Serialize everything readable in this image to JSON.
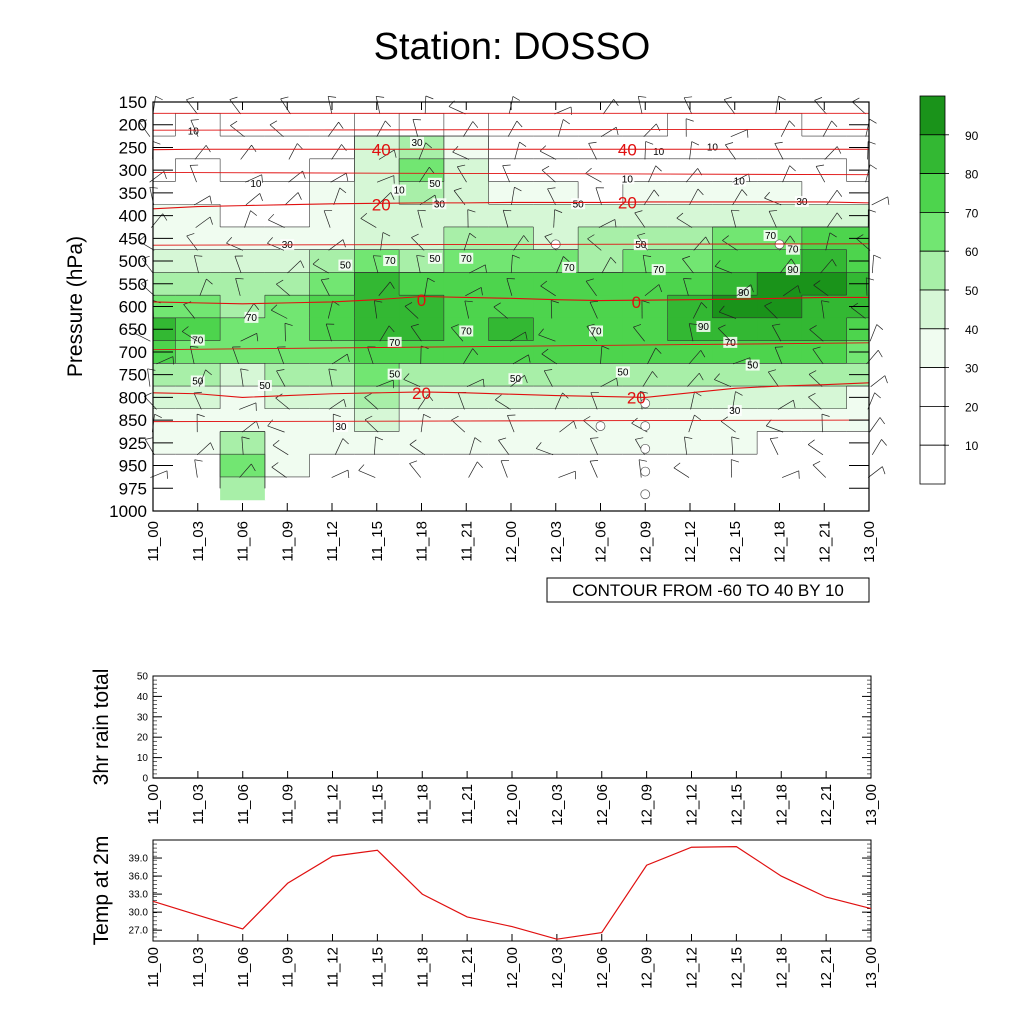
{
  "page": {
    "title": "Station: DOSSO"
  },
  "chart_data": [
    {
      "type": "contour",
      "ylabel": "Pressure (hPa)",
      "xlabel": "",
      "x_ticks": [
        "11_00",
        "11_03",
        "11_06",
        "11_09",
        "11_12",
        "11_15",
        "11_18",
        "11_21",
        "12_00",
        "12_03",
        "12_06",
        "12_09",
        "12_12",
        "12_15",
        "12_18",
        "12_21",
        "13_00"
      ],
      "y_ticks": [
        150,
        200,
        250,
        300,
        350,
        400,
        450,
        500,
        550,
        600,
        650,
        700,
        750,
        800,
        850,
        925,
        950,
        975,
        1000
      ],
      "ylim": [
        150,
        1000
      ],
      "y_scale": "categorical-levels",
      "fill_variable_levels": [
        10,
        20,
        30,
        40,
        50,
        60,
        70,
        80,
        90
      ],
      "fill_colors": [
        "#ffffff",
        "#ffffff",
        "#ffffff",
        "#f0fcf0",
        "#d6f7d6",
        "#a8efa8",
        "#72e672",
        "#4dd44d",
        "#33b833",
        "#1a931a"
      ],
      "fill_line_labels": [
        "10",
        "30",
        "50",
        "70",
        "90",
        "70",
        "50",
        "30"
      ],
      "temperature_contours": {
        "info": "CONTOUR FROM -60 TO 40 BY 10",
        "labels": [
          "40",
          "20",
          "0",
          "20"
        ],
        "color": "#e01010"
      },
      "humidity_grid": {
        "levels": [
          150,
          200,
          250,
          300,
          350,
          400,
          450,
          500,
          550,
          600,
          650,
          700,
          750,
          800,
          850,
          925,
          950,
          975
        ],
        "times": [
          "11_00",
          "11_03",
          "11_06",
          "11_09",
          "11_12",
          "11_15",
          "11_18",
          "11_21",
          "12_00",
          "12_03",
          "12_06",
          "12_09",
          "12_12",
          "12_15",
          "12_18",
          "12_21",
          "13_00"
        ],
        "values": [
          [
            5,
            5,
            5,
            5,
            5,
            5,
            5,
            5,
            5,
            5,
            5,
            5,
            5,
            5,
            5,
            5,
            5
          ],
          [
            8,
            10,
            8,
            6,
            8,
            12,
            20,
            10,
            8,
            6,
            8,
            8,
            10,
            12,
            10,
            8,
            6
          ],
          [
            12,
            15,
            14,
            12,
            18,
            40,
            55,
            30,
            15,
            12,
            14,
            12,
            14,
            16,
            14,
            12,
            10
          ],
          [
            18,
            20,
            18,
            16,
            25,
            45,
            68,
            40,
            25,
            22,
            20,
            20,
            22,
            25,
            22,
            20,
            18
          ],
          [
            25,
            25,
            22,
            20,
            30,
            48,
            55,
            45,
            35,
            30,
            28,
            32,
            30,
            32,
            30,
            28,
            28
          ],
          [
            30,
            30,
            28,
            28,
            32,
            45,
            42,
            45,
            45,
            42,
            42,
            45,
            45,
            45,
            40,
            42,
            42
          ],
          [
            35,
            35,
            32,
            32,
            38,
            48,
            48,
            52,
            50,
            48,
            50,
            52,
            55,
            60,
            65,
            70,
            72
          ],
          [
            45,
            42,
            40,
            40,
            52,
            68,
            58,
            68,
            62,
            60,
            58,
            60,
            65,
            72,
            78,
            85,
            78
          ],
          [
            55,
            55,
            52,
            52,
            62,
            80,
            70,
            72,
            72,
            70,
            75,
            72,
            78,
            85,
            90,
            92,
            85
          ],
          [
            68,
            62,
            58,
            60,
            70,
            88,
            82,
            75,
            78,
            72,
            78,
            75,
            88,
            92,
            90,
            85,
            80
          ],
          [
            80,
            72,
            65,
            68,
            72,
            85,
            82,
            78,
            80,
            75,
            78,
            78,
            85,
            88,
            85,
            80,
            78
          ],
          [
            72,
            65,
            60,
            62,
            65,
            72,
            72,
            70,
            72,
            70,
            70,
            70,
            72,
            75,
            72,
            70,
            68
          ],
          [
            55,
            50,
            48,
            52,
            55,
            60,
            58,
            58,
            58,
            55,
            55,
            55,
            55,
            58,
            55,
            52,
            50
          ],
          [
            42,
            40,
            38,
            42,
            45,
            50,
            48,
            48,
            48,
            45,
            45,
            45,
            45,
            45,
            42,
            40,
            38
          ],
          [
            35,
            35,
            32,
            35,
            38,
            40,
            38,
            38,
            38,
            35,
            35,
            35,
            35,
            35,
            32,
            32,
            30
          ],
          [
            30,
            30,
            55,
            35,
            32,
            30,
            30,
            30,
            30,
            30,
            30,
            30,
            30,
            30,
            28,
            28,
            28
          ],
          [
            25,
            25,
            62,
            30,
            28,
            28,
            25,
            25,
            25,
            25,
            25,
            25,
            25,
            25,
            25,
            25,
            25
          ],
          [
            20,
            20,
            55,
            25,
            20,
            20,
            20,
            20,
            20,
            20,
            20,
            20,
            20,
            20,
            20,
            20,
            20
          ]
        ]
      },
      "temperature_lines": [
        {
          "label": "40",
          "levels_by_time": [
            255,
            254,
            254,
            254,
            254,
            254,
            254,
            254,
            254,
            254,
            254,
            254,
            254,
            254,
            254,
            254,
            254
          ]
        },
        {
          "label": "20",
          "levels_by_time": [
            385,
            380,
            378,
            376,
            374,
            373,
            372,
            372,
            371,
            371,
            371,
            370,
            370,
            370,
            370,
            370,
            372
          ]
        },
        {
          "label": "0",
          "levels_by_time": [
            590,
            592,
            594,
            592,
            590,
            585,
            578,
            580,
            582,
            585,
            587,
            586,
            585,
            584,
            582,
            580,
            580
          ]
        },
        {
          "label": "20",
          "levels_by_time": [
            790,
            792,
            800,
            796,
            792,
            790,
            788,
            790,
            793,
            796,
            798,
            800,
            790,
            780,
            775,
            772,
            768
          ]
        }
      ]
    },
    {
      "type": "line",
      "ylabel": "3hr rain total",
      "x": [
        "11_00",
        "11_03",
        "11_06",
        "11_09",
        "11_12",
        "11_15",
        "11_18",
        "11_21",
        "12_00",
        "12_03",
        "12_06",
        "12_09",
        "12_12",
        "12_15",
        "12_18",
        "12_21",
        "13_00"
      ],
      "values": [
        0,
        0,
        0,
        0,
        0,
        0,
        0,
        0,
        0,
        0,
        0,
        0,
        0,
        0,
        0,
        0,
        0
      ],
      "ylim": [
        0,
        50
      ],
      "y_ticks": [
        0,
        10,
        20,
        30,
        40,
        50
      ],
      "color": "#000000"
    },
    {
      "type": "line",
      "ylabel": "Temp at 2m",
      "x": [
        "11_00",
        "11_03",
        "11_06",
        "11_09",
        "11_12",
        "11_15",
        "11_18",
        "11_21",
        "12_00",
        "12_03",
        "12_06",
        "12_09",
        "12_12",
        "12_15",
        "12_18",
        "12_21",
        "13_00"
      ],
      "values": [
        31.8,
        29.5,
        27.2,
        34.8,
        39.3,
        40.3,
        33.0,
        29.2,
        27.6,
        25.5,
        26.6,
        37.8,
        40.8,
        40.9,
        36.0,
        32.5,
        30.6
      ],
      "ylim": [
        25.2,
        42.0
      ],
      "y_ticks": [
        "27.0",
        "30.0",
        "33.0",
        "36.0",
        "39.0"
      ],
      "color": "#e01010"
    }
  ]
}
